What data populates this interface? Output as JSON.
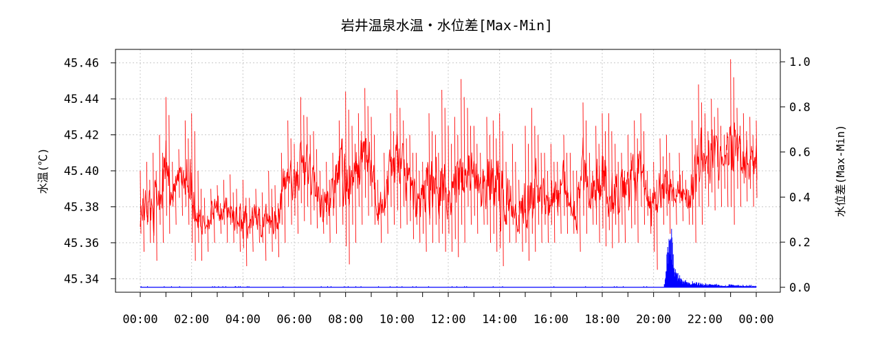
{
  "chart_data": {
    "type": "line",
    "title": "岩井温泉水温・水位差[Max-Min]",
    "xlabel": "",
    "ylabel": "水温(℃)",
    "y2label": "水位差(Max-Min)",
    "x_ticks": [
      "00:00",
      "02:00",
      "04:00",
      "06:00",
      "08:00",
      "10:00",
      "12:00",
      "14:00",
      "16:00",
      "18:00",
      "20:00",
      "22:00",
      "00:00"
    ],
    "x_range_hours": [
      0,
      24
    ],
    "y_ticks": [
      "45.34",
      "45.36",
      "45.38",
      "45.40",
      "45.42",
      "45.44",
      "45.46"
    ],
    "y_lim": [
      45.3325,
      45.4675
    ],
    "y2_ticks": [
      "0.0",
      "0.2",
      "0.4",
      "0.6",
      "0.8",
      "1.0"
    ],
    "y2_lim": [
      -0.022,
      1.055
    ],
    "grid": true,
    "legend": "none",
    "series": [
      {
        "axis": "left",
        "color": "#ff0000",
        "x_hours": [
          0,
          0.25,
          0.5,
          0.75,
          1,
          1.25,
          1.5,
          1.75,
          2,
          2.25,
          2.5,
          2.75,
          3,
          3.25,
          3.5,
          3.75,
          4,
          4.25,
          4.5,
          4.75,
          5,
          5.25,
          5.5,
          5.75,
          6,
          6.25,
          6.5,
          6.75,
          7,
          7.25,
          7.5,
          7.75,
          8,
          8.25,
          8.5,
          8.75,
          9,
          9.25,
          9.5,
          9.75,
          10,
          10.25,
          10.5,
          10.75,
          11,
          11.25,
          11.5,
          11.75,
          12,
          12.25,
          12.5,
          12.75,
          13,
          13.25,
          13.5,
          13.75,
          14,
          14.25,
          14.5,
          14.75,
          15,
          15.25,
          15.5,
          15.75,
          16,
          16.25,
          16.5,
          16.75,
          17,
          17.25,
          17.5,
          17.75,
          18,
          18.25,
          18.5,
          18.75,
          19,
          19.25,
          19.5,
          19.75,
          20,
          20.25,
          20.5,
          20.75,
          21,
          21.25,
          21.5,
          21.75,
          22,
          22.25,
          22.5,
          22.75,
          23,
          23.25,
          23.5,
          23.75,
          24
        ],
        "max": [
          45.4,
          45.405,
          45.41,
          45.42,
          45.441,
          45.405,
          45.412,
          45.428,
          45.432,
          45.4,
          45.385,
          45.39,
          45.392,
          45.395,
          45.398,
          45.39,
          45.395,
          45.385,
          45.39,
          45.388,
          45.4,
          45.392,
          45.41,
          45.428,
          45.415,
          45.441,
          45.43,
          45.422,
          45.4,
          45.405,
          45.41,
          45.428,
          45.444,
          45.425,
          45.432,
          45.446,
          45.43,
          45.395,
          45.41,
          45.432,
          45.445,
          45.428,
          45.42,
          45.41,
          45.405,
          45.432,
          45.42,
          45.445,
          45.425,
          45.43,
          45.451,
          45.435,
          45.425,
          45.41,
          45.43,
          45.428,
          45.432,
          45.405,
          45.415,
          45.395,
          45.425,
          45.435,
          45.42,
          45.41,
          45.415,
          45.405,
          45.42,
          45.41,
          45.4,
          45.438,
          45.41,
          45.425,
          45.432,
          45.432,
          45.415,
          45.41,
          45.42,
          45.428,
          45.432,
          45.4,
          45.405,
          45.418,
          45.42,
          45.4,
          45.41,
          45.395,
          45.428,
          45.448,
          45.432,
          45.44,
          45.435,
          45.42,
          45.462,
          45.435,
          45.432,
          45.43,
          45.428,
          45.43,
          45.395
        ],
        "min": [
          45.355,
          45.36,
          45.35,
          45.36,
          45.365,
          45.37,
          45.375,
          45.37,
          45.35,
          45.35,
          45.355,
          45.36,
          45.365,
          45.36,
          45.36,
          45.355,
          45.347,
          45.355,
          45.36,
          45.35,
          45.355,
          45.352,
          45.36,
          45.37,
          45.365,
          45.372,
          45.37,
          45.368,
          45.365,
          45.36,
          45.365,
          45.37,
          45.348,
          45.36,
          45.37,
          45.375,
          45.37,
          45.36,
          45.365,
          45.37,
          45.368,
          45.37,
          45.362,
          45.36,
          45.355,
          45.36,
          45.36,
          45.355,
          45.355,
          45.352,
          45.36,
          45.37,
          45.365,
          45.37,
          45.36,
          45.355,
          45.347,
          45.36,
          45.36,
          45.355,
          45.35,
          45.355,
          45.36,
          45.36,
          45.36,
          45.365,
          45.365,
          45.365,
          45.355,
          45.365,
          45.37,
          45.36,
          45.358,
          45.357,
          45.36,
          45.36,
          45.368,
          45.36,
          45.37,
          45.365,
          45.345,
          45.37,
          45.365,
          45.37,
          45.372,
          45.37,
          45.36,
          45.37,
          45.38,
          45.378,
          45.38,
          45.38,
          45.37,
          45.38,
          45.383,
          45.38,
          45.385,
          45.38,
          45.37
        ]
      },
      {
        "axis": "right",
        "color": "#0000ff",
        "baseline": 0.0,
        "x_hours": [
          0,
          20.4,
          20.45,
          20.5,
          20.55,
          20.6,
          20.65,
          20.7,
          20.75,
          20.8,
          20.85,
          20.9,
          21.0,
          21.1,
          21.25,
          21.5,
          21.75,
          22.0,
          22.5,
          22.75,
          23.0,
          23.5,
          24
        ],
        "values": [
          0.0,
          0.0,
          0.03,
          0.08,
          0.17,
          0.22,
          0.15,
          0.24,
          0.12,
          0.09,
          0.06,
          0.05,
          0.04,
          0.03,
          0.025,
          0.02,
          0.015,
          0.01,
          0.01,
          0.005,
          0.01,
          0.005,
          0.005
        ]
      }
    ]
  }
}
